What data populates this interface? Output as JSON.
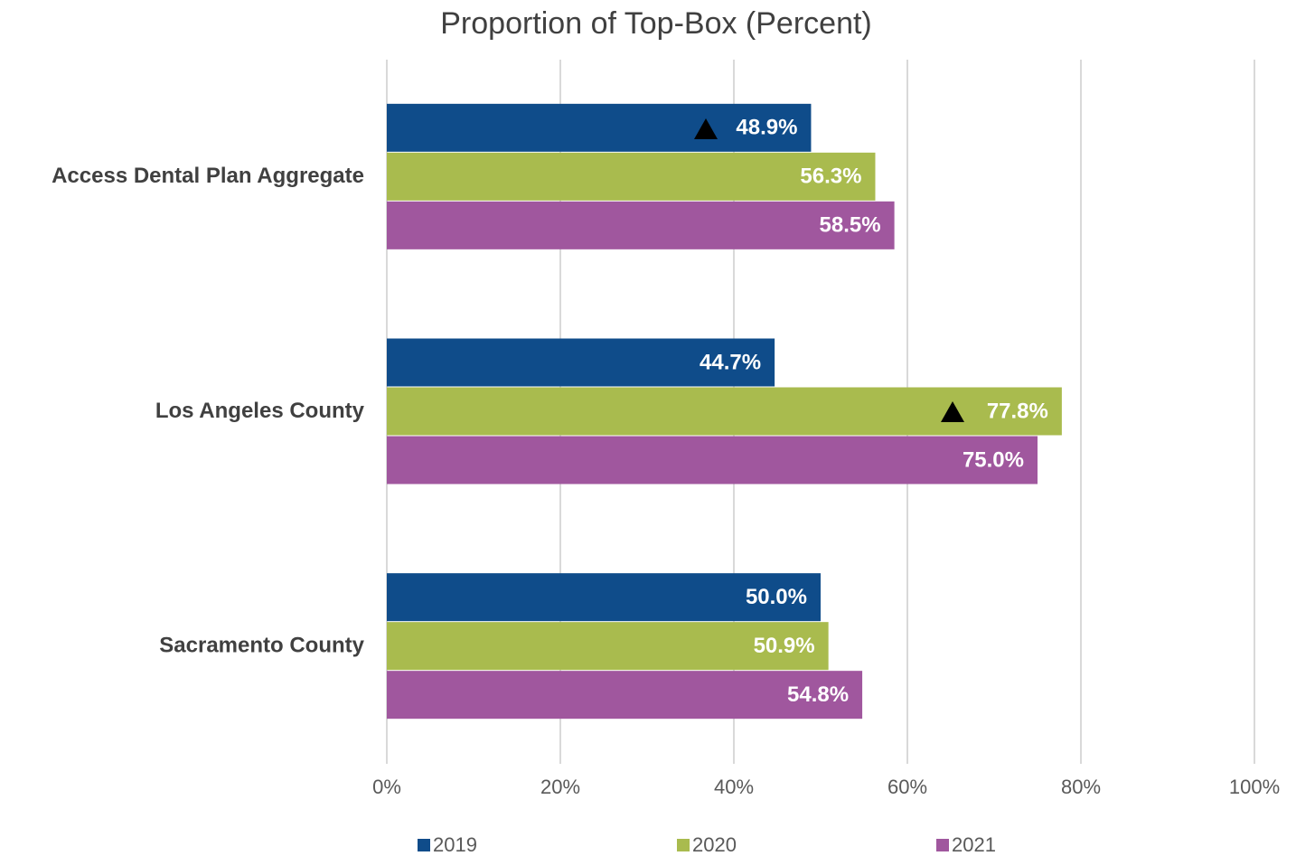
{
  "chart_data": {
    "type": "bar",
    "orientation": "horizontal",
    "title": "Proportion of Top-Box (Percent)",
    "categories": [
      "Access Dental Plan Aggregate",
      "Los Angeles County",
      "Sacramento County"
    ],
    "series": [
      {
        "name": "2019",
        "color": "#0f4c8a",
        "values": [
          48.9,
          44.7,
          50.0
        ],
        "value_labels": [
          "48.9%",
          "44.7%",
          "50.0%"
        ]
      },
      {
        "name": "2020",
        "color": "#a9bb4e",
        "values": [
          56.3,
          77.8,
          50.9
        ],
        "value_labels": [
          "56.3%",
          "77.8%",
          "50.9%"
        ]
      },
      {
        "name": "2021",
        "color": "#a0579e",
        "values": [
          58.5,
          75.0,
          54.8
        ],
        "value_labels": [
          "58.5%",
          "75.0%",
          "54.8%"
        ]
      }
    ],
    "xlim": [
      0,
      100
    ],
    "xticks": [
      {
        "value": 0,
        "label": "0%"
      },
      {
        "value": 20,
        "label": "20%"
      },
      {
        "value": 40,
        "label": "40%"
      },
      {
        "value": 60,
        "label": "60%"
      },
      {
        "value": 80,
        "label": "80%"
      },
      {
        "value": 100,
        "label": "100%"
      }
    ],
    "grid": true,
    "legend": "bottom"
  }
}
